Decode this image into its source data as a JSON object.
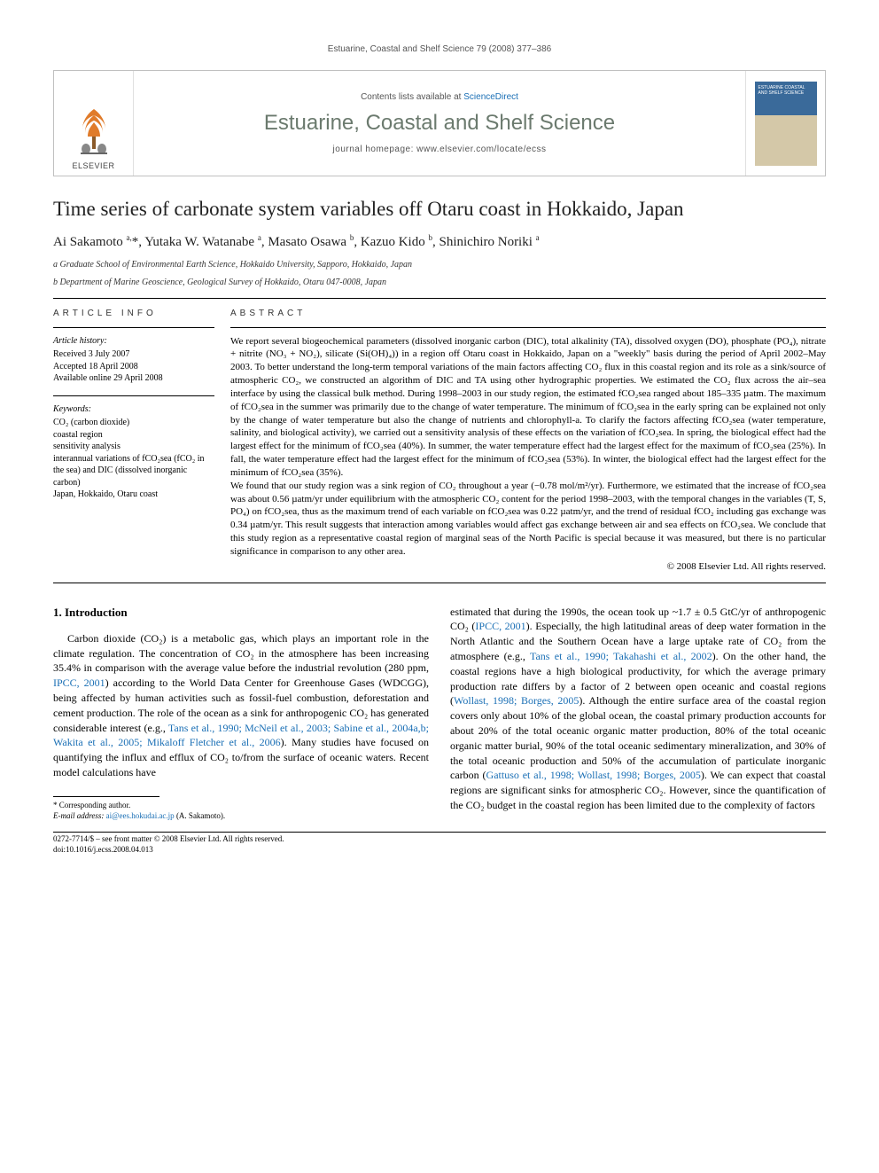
{
  "running_header": "Estuarine, Coastal and Shelf Science 79 (2008) 377–386",
  "banner": {
    "publisher": "ELSEVIER",
    "contents_prefix": "Contents lists available at ",
    "contents_link": "ScienceDirect",
    "journal_name": "Estuarine, Coastal and Shelf Science",
    "homepage_prefix": "journal homepage: ",
    "homepage_url": "www.elsevier.com/locate/ecss",
    "cover_text": "ESTUARINE COASTAL AND SHELF SCIENCE"
  },
  "article": {
    "title": "Time series of carbonate system variables off Otaru coast in Hokkaido, Japan",
    "authors_html": "Ai Sakamoto <sup>a,</sup>*, Yutaka W. Watanabe <sup>a</sup>, Masato Osawa <sup>b</sup>, Kazuo Kido <sup>b</sup>, Shinichiro Noriki <sup>a</sup>",
    "affiliations": [
      "a Graduate School of Environmental Earth Science, Hokkaido University, Sapporo, Hokkaido, Japan",
      "b Department of Marine Geoscience, Geological Survey of Hokkaido, Otaru 047-0008, Japan"
    ]
  },
  "article_info": {
    "heading": "ARTICLE INFO",
    "history_label": "Article history:",
    "history": [
      "Received 3 July 2007",
      "Accepted 18 April 2008",
      "Available online 29 April 2008"
    ],
    "keywords_label": "Keywords:",
    "keywords": [
      "CO₂ (carbon dioxide)",
      "coastal region",
      "sensitivity analysis",
      "interannual variations of fCO₂sea (fCO₂ in the sea) and DIC (dissolved inorganic carbon)",
      "Japan, Hokkaido, Otaru coast"
    ]
  },
  "abstract": {
    "heading": "ABSTRACT",
    "paragraphs": [
      "We report several biogeochemical parameters (dissolved inorganic carbon (DIC), total alkalinity (TA), dissolved oxygen (DO), phosphate (PO₄), nitrate + nitrite (NO₃ + NO₂), silicate (Si(OH)₄)) in a region off Otaru coast in Hokkaido, Japan on a \"weekly\" basis during the period of April 2002–May 2003. To better understand the long-term temporal variations of the main factors affecting CO₂ flux in this coastal region and its role as a sink/source of atmospheric CO₂, we constructed an algorithm of DIC and TA using other hydrographic properties. We estimated the CO₂ flux across the air–sea interface by using the classical bulk method. During 1998–2003 in our study region, the estimated fCO₂sea ranged about 185–335 µatm. The maximum of fCO₂sea in the summer was primarily due to the change of water temperature. The minimum of fCO₂sea in the early spring can be explained not only by the change of water temperature but also the change of nutrients and chlorophyll-a. To clarify the factors affecting fCO₂sea (water temperature, salinity, and biological activity), we carried out a sensitivity analysis of these effects on the variation of fCO₂sea. In spring, the biological effect had the largest effect for the minimum of fCO₂sea (40%). In summer, the water temperature effect had the largest effect for the maximum of fCO₂sea (25%). In fall, the water temperature effect had the largest effect for the minimum of fCO₂sea (53%). In winter, the biological effect had the largest effect for the minimum of fCO₂sea (35%).",
      "We found that our study region was a sink region of CO₂ throughout a year (−0.78 mol/m²/yr). Furthermore, we estimated that the increase of fCO₂sea was about 0.56 µatm/yr under equilibrium with the atmospheric CO₂ content for the period 1998–2003, with the temporal changes in the variables (T, S, PO₄) on fCO₂sea, thus as the maximum trend of each variable on fCO₂sea was 0.22 µatm/yr, and the trend of residual fCO₂ including gas exchange was 0.34 µatm/yr. This result suggests that interaction among variables would affect gas exchange between air and sea effects on fCO₂sea. We conclude that this study region as a representative coastal region of marginal seas of the North Pacific is special because it was measured, but there is no particular significance in comparison to any other area."
    ],
    "copyright": "© 2008 Elsevier Ltd. All rights reserved."
  },
  "body": {
    "section_number": "1.",
    "section_title": "Introduction",
    "left": "Carbon dioxide (CO₂) is a metabolic gas, which plays an important role in the climate regulation. The concentration of CO₂ in the atmosphere has been increasing 35.4% in comparison with the average value before the industrial revolution (280 ppm, <span class=\"ref-link\">IPCC, 2001</span>) according to the World Data Center for Greenhouse Gases (WDCGG), being affected by human activities such as fossil-fuel combustion, deforestation and cement production. The role of the ocean as a sink for anthropogenic CO₂ has generated considerable interest (e.g., <span class=\"ref-link\">Tans et al., 1990; McNeil et al., 2003; Sabine et al., 2004a,b; Wakita et al., 2005; Mikaloff Fletcher et al., 2006</span>). Many studies have focused on quantifying the influx and efflux of CO₂ to/from the surface of oceanic waters. Recent model calculations have",
    "right": "estimated that during the 1990s, the ocean took up ~1.7 ± 0.5 GtC/yr of anthropogenic CO₂ (<span class=\"ref-link\">IPCC, 2001</span>). Especially, the high latitudinal areas of deep water formation in the North Atlantic and the Southern Ocean have a large uptake rate of CO₂ from the atmosphere (e.g., <span class=\"ref-link\">Tans et al., 1990; Takahashi et al., 2002</span>). On the other hand, the coastal regions have a high biological productivity, for which the average primary production rate differs by a factor of 2 between open oceanic and coastal regions (<span class=\"ref-link\">Wollast, 1998; Borges, 2005</span>). Although the entire surface area of the coastal region covers only about 10% of the global ocean, the coastal primary production accounts for about 20% of the total oceanic organic matter production, 80% of the total oceanic organic matter burial, 90% of the total oceanic sedimentary mineralization, and 30% of the total oceanic production and 50% of the accumulation of particulate inorganic carbon (<span class=\"ref-link\">Gattuso et al., 1998; Wollast, 1998; Borges, 2005</span>). We can expect that coastal regions are significant sinks for atmospheric CO₂. However, since the quantification of the CO₂ budget in the coastal region has been limited due to the complexity of factors"
  },
  "footnote": {
    "corresponding": "* Corresponding author.",
    "email_label": "E-mail address:",
    "email": "ai@ees.hokudai.ac.jp",
    "email_name": "(A. Sakamoto)."
  },
  "bottom": {
    "issn_line": "0272-7714/$ – see front matter © 2008 Elsevier Ltd. All rights reserved.",
    "doi_line": "doi:10.1016/j.ecss.2008.04.013"
  },
  "colors": {
    "link": "#1a6fb5",
    "journal_green": "#6b7a6e",
    "border_gray": "#c0c0c0"
  }
}
